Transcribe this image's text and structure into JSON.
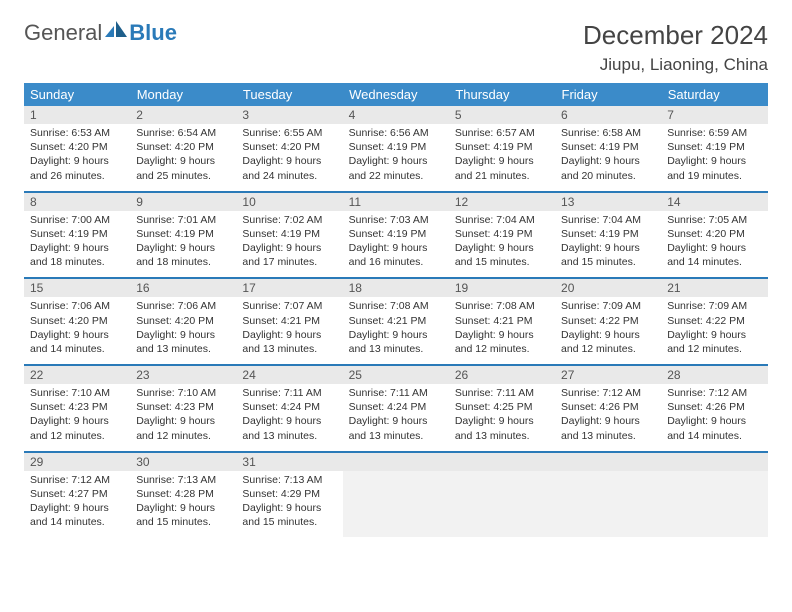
{
  "brand": {
    "name1": "General",
    "name2": "Blue"
  },
  "title": {
    "month_year": "December 2024",
    "location": "Jiupu, Liaoning, China"
  },
  "colors": {
    "header_blue": "#3b8bc9",
    "separator_blue": "#2a7ab8",
    "daynum_bg": "#e9e9e9",
    "empty_bg": "#f2f2f2",
    "text": "#333333",
    "title_text": "#444444",
    "logo_gray": "#555555",
    "logo_blue": "#2a7ab8"
  },
  "layout": {
    "columns": 7,
    "fontsize_dow": 13,
    "fontsize_daynum": 12,
    "fontsize_info": 10.5,
    "fontsize_title": 26,
    "fontsize_location": 17
  },
  "days_of_week": [
    "Sunday",
    "Monday",
    "Tuesday",
    "Wednesday",
    "Thursday",
    "Friday",
    "Saturday"
  ],
  "weeks": [
    [
      {
        "n": "1",
        "sunrise": "Sunrise: 6:53 AM",
        "sunset": "Sunset: 4:20 PM",
        "daylight": "Daylight: 9 hours and 26 minutes."
      },
      {
        "n": "2",
        "sunrise": "Sunrise: 6:54 AM",
        "sunset": "Sunset: 4:20 PM",
        "daylight": "Daylight: 9 hours and 25 minutes."
      },
      {
        "n": "3",
        "sunrise": "Sunrise: 6:55 AM",
        "sunset": "Sunset: 4:20 PM",
        "daylight": "Daylight: 9 hours and 24 minutes."
      },
      {
        "n": "4",
        "sunrise": "Sunrise: 6:56 AM",
        "sunset": "Sunset: 4:19 PM",
        "daylight": "Daylight: 9 hours and 22 minutes."
      },
      {
        "n": "5",
        "sunrise": "Sunrise: 6:57 AM",
        "sunset": "Sunset: 4:19 PM",
        "daylight": "Daylight: 9 hours and 21 minutes."
      },
      {
        "n": "6",
        "sunrise": "Sunrise: 6:58 AM",
        "sunset": "Sunset: 4:19 PM",
        "daylight": "Daylight: 9 hours and 20 minutes."
      },
      {
        "n": "7",
        "sunrise": "Sunrise: 6:59 AM",
        "sunset": "Sunset: 4:19 PM",
        "daylight": "Daylight: 9 hours and 19 minutes."
      }
    ],
    [
      {
        "n": "8",
        "sunrise": "Sunrise: 7:00 AM",
        "sunset": "Sunset: 4:19 PM",
        "daylight": "Daylight: 9 hours and 18 minutes."
      },
      {
        "n": "9",
        "sunrise": "Sunrise: 7:01 AM",
        "sunset": "Sunset: 4:19 PM",
        "daylight": "Daylight: 9 hours and 18 minutes."
      },
      {
        "n": "10",
        "sunrise": "Sunrise: 7:02 AM",
        "sunset": "Sunset: 4:19 PM",
        "daylight": "Daylight: 9 hours and 17 minutes."
      },
      {
        "n": "11",
        "sunrise": "Sunrise: 7:03 AM",
        "sunset": "Sunset: 4:19 PM",
        "daylight": "Daylight: 9 hours and 16 minutes."
      },
      {
        "n": "12",
        "sunrise": "Sunrise: 7:04 AM",
        "sunset": "Sunset: 4:19 PM",
        "daylight": "Daylight: 9 hours and 15 minutes."
      },
      {
        "n": "13",
        "sunrise": "Sunrise: 7:04 AM",
        "sunset": "Sunset: 4:19 PM",
        "daylight": "Daylight: 9 hours and 15 minutes."
      },
      {
        "n": "14",
        "sunrise": "Sunrise: 7:05 AM",
        "sunset": "Sunset: 4:20 PM",
        "daylight": "Daylight: 9 hours and 14 minutes."
      }
    ],
    [
      {
        "n": "15",
        "sunrise": "Sunrise: 7:06 AM",
        "sunset": "Sunset: 4:20 PM",
        "daylight": "Daylight: 9 hours and 14 minutes."
      },
      {
        "n": "16",
        "sunrise": "Sunrise: 7:06 AM",
        "sunset": "Sunset: 4:20 PM",
        "daylight": "Daylight: 9 hours and 13 minutes."
      },
      {
        "n": "17",
        "sunrise": "Sunrise: 7:07 AM",
        "sunset": "Sunset: 4:21 PM",
        "daylight": "Daylight: 9 hours and 13 minutes."
      },
      {
        "n": "18",
        "sunrise": "Sunrise: 7:08 AM",
        "sunset": "Sunset: 4:21 PM",
        "daylight": "Daylight: 9 hours and 13 minutes."
      },
      {
        "n": "19",
        "sunrise": "Sunrise: 7:08 AM",
        "sunset": "Sunset: 4:21 PM",
        "daylight": "Daylight: 9 hours and 12 minutes."
      },
      {
        "n": "20",
        "sunrise": "Sunrise: 7:09 AM",
        "sunset": "Sunset: 4:22 PM",
        "daylight": "Daylight: 9 hours and 12 minutes."
      },
      {
        "n": "21",
        "sunrise": "Sunrise: 7:09 AM",
        "sunset": "Sunset: 4:22 PM",
        "daylight": "Daylight: 9 hours and 12 minutes."
      }
    ],
    [
      {
        "n": "22",
        "sunrise": "Sunrise: 7:10 AM",
        "sunset": "Sunset: 4:23 PM",
        "daylight": "Daylight: 9 hours and 12 minutes."
      },
      {
        "n": "23",
        "sunrise": "Sunrise: 7:10 AM",
        "sunset": "Sunset: 4:23 PM",
        "daylight": "Daylight: 9 hours and 12 minutes."
      },
      {
        "n": "24",
        "sunrise": "Sunrise: 7:11 AM",
        "sunset": "Sunset: 4:24 PM",
        "daylight": "Daylight: 9 hours and 13 minutes."
      },
      {
        "n": "25",
        "sunrise": "Sunrise: 7:11 AM",
        "sunset": "Sunset: 4:24 PM",
        "daylight": "Daylight: 9 hours and 13 minutes."
      },
      {
        "n": "26",
        "sunrise": "Sunrise: 7:11 AM",
        "sunset": "Sunset: 4:25 PM",
        "daylight": "Daylight: 9 hours and 13 minutes."
      },
      {
        "n": "27",
        "sunrise": "Sunrise: 7:12 AM",
        "sunset": "Sunset: 4:26 PM",
        "daylight": "Daylight: 9 hours and 13 minutes."
      },
      {
        "n": "28",
        "sunrise": "Sunrise: 7:12 AM",
        "sunset": "Sunset: 4:26 PM",
        "daylight": "Daylight: 9 hours and 14 minutes."
      }
    ],
    [
      {
        "n": "29",
        "sunrise": "Sunrise: 7:12 AM",
        "sunset": "Sunset: 4:27 PM",
        "daylight": "Daylight: 9 hours and 14 minutes."
      },
      {
        "n": "30",
        "sunrise": "Sunrise: 7:13 AM",
        "sunset": "Sunset: 4:28 PM",
        "daylight": "Daylight: 9 hours and 15 minutes."
      },
      {
        "n": "31",
        "sunrise": "Sunrise: 7:13 AM",
        "sunset": "Sunset: 4:29 PM",
        "daylight": "Daylight: 9 hours and 15 minutes."
      },
      null,
      null,
      null,
      null
    ]
  ]
}
